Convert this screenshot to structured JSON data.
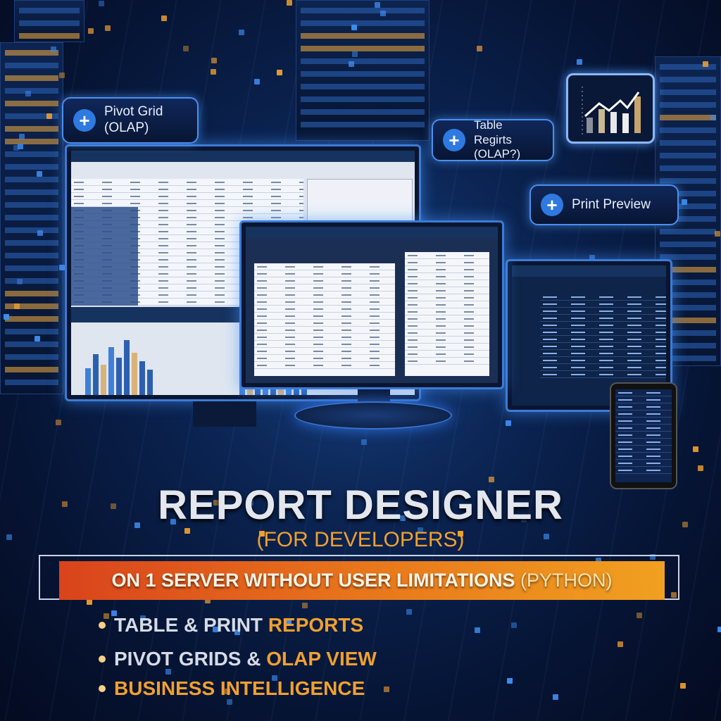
{
  "callouts": [
    {
      "label_line1": "Pivot Grid",
      "label_line2": "(OLAP)",
      "icon": "plus-icon"
    },
    {
      "label_line1": "Table Regirts",
      "label_line2": "(OLAP?)",
      "icon": "plus-icon"
    },
    {
      "label_line1": "Print Preview",
      "icon": "plus-icon"
    }
  ],
  "chart_badge_icon": "trending-bar-chart-icon",
  "headline": {
    "title": "REPORT DESIGNER",
    "subtitle": "(FOR DEVELOPERS)"
  },
  "banner": {
    "main": "ON 1 SERVER WITHOUT USER LIMITATIONS ",
    "paren": "(PYTHON)"
  },
  "features": [
    {
      "white": "TABLE & PRINT ",
      "orange": "REPORTS"
    },
    {
      "white": "PIVOT GRIDS & ",
      "orange": "OLAP VIEW"
    },
    {
      "white": "",
      "orange": "BUSINESS INTELLIGENCE"
    }
  ],
  "colors": {
    "accent_orange": "#f0a030",
    "accent_blue": "#3c7bd8",
    "background": "#06122e"
  }
}
